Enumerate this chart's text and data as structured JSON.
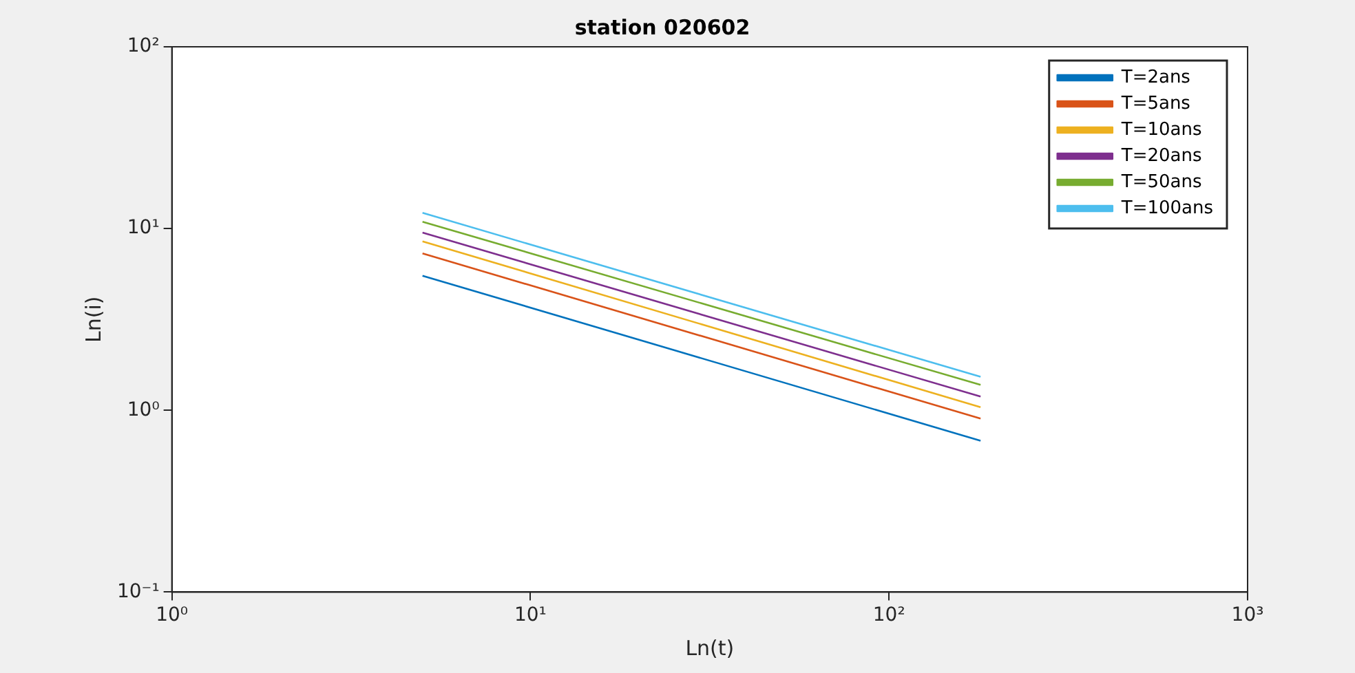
{
  "chart_data": {
    "type": "line",
    "title": "station 020602",
    "xlabel": "Ln(t)",
    "ylabel": "Ln(i)",
    "x": [
      5,
      180
    ],
    "series": [
      {
        "name": "T=2ans",
        "color": "#0072bd",
        "values": [
          5.5,
          0.68
        ]
      },
      {
        "name": "T=5ans",
        "color": "#d95319",
        "values": [
          7.3,
          0.9
        ]
      },
      {
        "name": "T=10ans",
        "color": "#edb120",
        "values": [
          8.5,
          1.04
        ]
      },
      {
        "name": "T=20ans",
        "color": "#7e2f8e",
        "values": [
          9.5,
          1.19
        ]
      },
      {
        "name": "T=50ans",
        "color": "#77ac30",
        "values": [
          10.9,
          1.38
        ]
      },
      {
        "name": "T=100ans",
        "color": "#4dbeee",
        "values": [
          12.2,
          1.53
        ]
      }
    ],
    "log": "xy",
    "xlim": [
      1,
      1000
    ],
    "ylim": [
      0.1,
      100
    ],
    "xticks": [
      {
        "value": 1,
        "label": "10⁰"
      },
      {
        "value": 10,
        "label": "10¹"
      },
      {
        "value": 100,
        "label": "10²"
      },
      {
        "value": 1000,
        "label": "10³"
      }
    ],
    "yticks": [
      {
        "value": 0.1,
        "label": "10⁻¹"
      },
      {
        "value": 1,
        "label": "10⁰"
      },
      {
        "value": 10,
        "label": "10¹"
      },
      {
        "value": 100,
        "label": "10²"
      }
    ],
    "grid": false,
    "legend": "top right",
    "marker": "none",
    "line_style": "solid"
  }
}
